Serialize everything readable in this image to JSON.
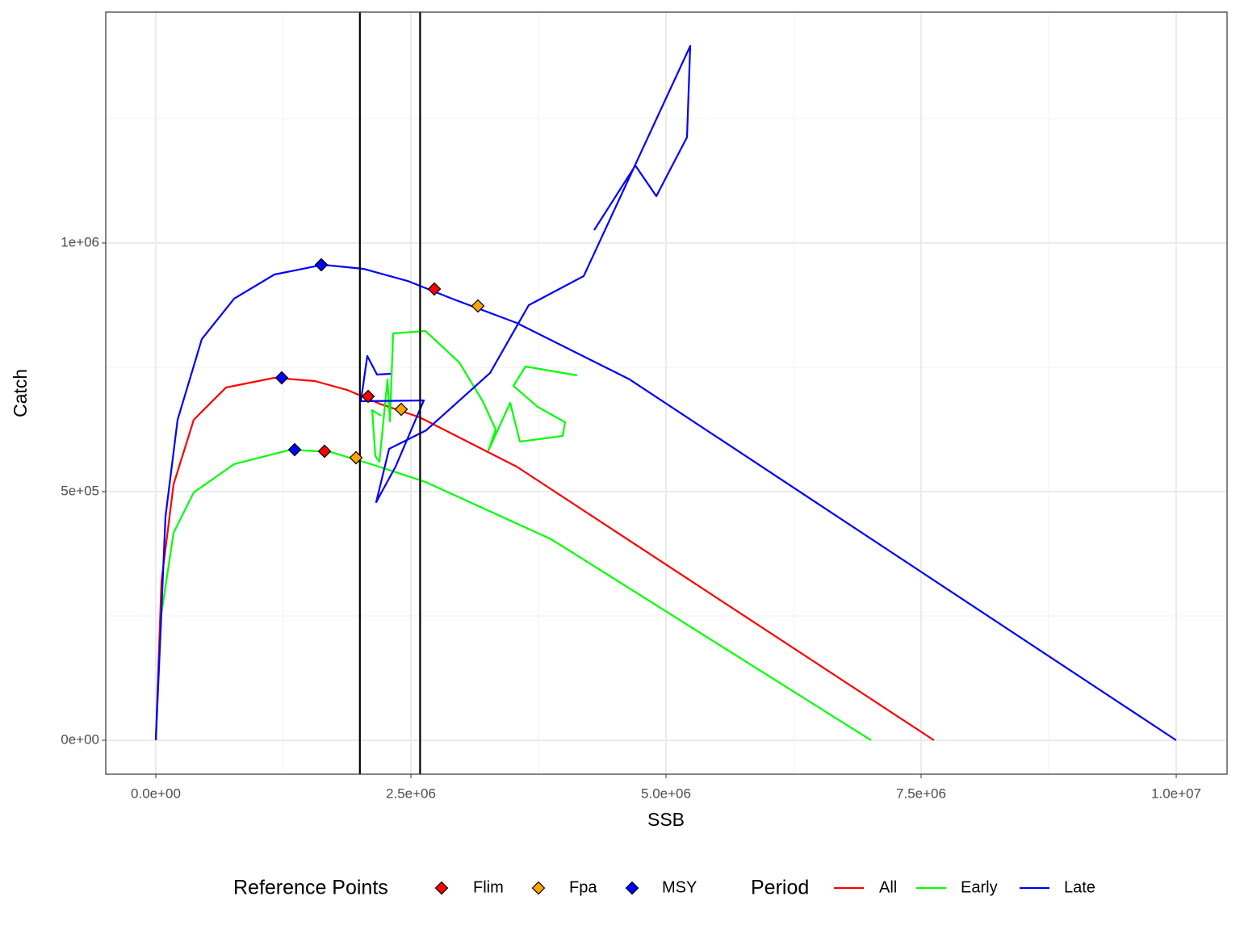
{
  "chart_data": {
    "type": "line",
    "xlabel": "SSB",
    "ylabel": "Catch",
    "xlim": [
      -490500,
      10498400
    ],
    "ylim": [
      -68200,
      1464300
    ],
    "xticks": [
      {
        "value": 0,
        "label": "0.0e+00"
      },
      {
        "value": 2500000,
        "label": "2.5e+06"
      },
      {
        "value": 5000000,
        "label": "5.0e+06"
      },
      {
        "value": 7500000,
        "label": "7.5e+06"
      },
      {
        "value": 10000000,
        "label": "1.0e+07"
      }
    ],
    "yticks": [
      {
        "value": 0,
        "label": "0e+00"
      },
      {
        "value": 500000,
        "label": "5e+05"
      },
      {
        "value": 1000000,
        "label": "1e+06"
      }
    ],
    "grid": true,
    "legend_position": "bottom",
    "legend_title": "Period",
    "series": [
      {
        "name": "All",
        "color": "#ff0000",
        "x": [
          0,
          55400,
          174000,
          371800,
          688300,
          1163000,
          1558500,
          1875000,
          2191500,
          2587000,
          3536400,
          7626600
        ],
        "y": [
          0,
          319800,
          514600,
          644500,
          709400,
          728900,
          722400,
          704500,
          676900,
          649400,
          550300,
          0
        ]
      },
      {
        "name": "Early",
        "color": "#00ff00",
        "x": [
          0,
          55400,
          174000,
          371800,
          767400,
          1321200,
          1716800,
          2112300,
          2642400,
          3876600,
          7009500
        ],
        "y": [
          0,
          254900,
          417200,
          498400,
          555200,
          584400,
          579500,
          555200,
          519500,
          404200,
          0
        ]
      },
      {
        "name": "Late",
        "color": "#0000ff",
        "x": [
          0,
          94900,
          213600,
          450900,
          767400,
          1163000,
          1637700,
          2033200,
          2468400,
          2903500,
          3536400,
          4644000,
          10000000
        ],
        "y": [
          0,
          449700,
          644500,
          806800,
          888000,
          936700,
          956200,
          948100,
          923700,
          888000,
          839300,
          725600,
          0
        ]
      }
    ],
    "trajectories": [
      {
        "name": "Early",
        "color": "#00ff00",
        "x": [
          4129700,
          3623400,
          3504700,
          3742100,
          4011100,
          3987300,
          3568000,
          3473100,
          3259500,
          3330700,
          3204100,
          2974700,
          2642400,
          2325900,
          2294300,
          2270600,
          2191500,
          2151900,
          2120300,
          2207300
        ],
        "y": [
          733800,
          751600,
          712700,
          670500,
          639600,
          612000,
          600600,
          678600,
          582800,
          625000,
          681800,
          759700,
          823100,
          818200,
          641200,
          725600,
          560100,
          571400,
          664000,
          652600
        ]
      },
      {
        "name": "Late",
        "color": "#0000ff",
        "x": [
          4295900,
          4699400,
          4905100,
          5205700,
          5237300,
          4193000,
          3655100,
          3275300,
          2650300,
          2286400,
          2159800,
          2349700,
          2626600,
          2009500,
          2072800,
          2167700,
          2302200
        ],
        "y": [
          1026000,
          1155800,
          1094200,
          1212700,
          1396100,
          933400,
          875000,
          738600,
          623400,
          586000,
          478900,
          550300,
          683400,
          681800,
          772700,
          735400,
          737000
        ]
      }
    ],
    "reference_title": "Reference Points",
    "reference_points": [
      {
        "name": "Flim",
        "color": "#ff0000",
        "x": [
          2729400,
          2080700,
          1653500
        ],
        "y": [
          907500,
          691600,
          581200
        ]
      },
      {
        "name": "Fpa",
        "color": "#ffa500",
        "x": [
          3156600,
          2405100,
          1962000
        ],
        "y": [
          873400,
          665600,
          568200
        ]
      },
      {
        "name": "MSY",
        "color": "#0000ff",
        "x": [
          1621800,
          1234200,
          1360800
        ],
        "y": [
          956200,
          728900,
          584400
        ]
      }
    ],
    "vlines": [
      2000000,
      2590000
    ]
  }
}
